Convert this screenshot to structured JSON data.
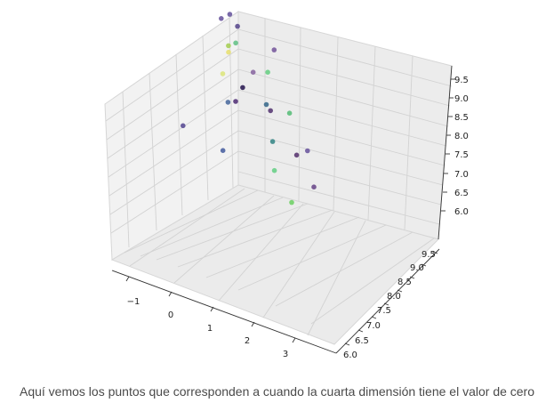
{
  "caption": "Aquí vemos los puntos que corresponden a cuando la cuarta dimensión tiene el valor de cero",
  "chart_data": {
    "type": "scatter",
    "projection": "3d",
    "title": "",
    "xlabel": "",
    "ylabel": "",
    "zlabel": "",
    "xlim": [
      -1.6,
      3.6
    ],
    "ylim": [
      5.9,
      9.6
    ],
    "zlim": [
      5.8,
      9.7
    ],
    "x_ticks": [
      "−1",
      "0",
      "1",
      "2",
      "3"
    ],
    "y_ticks": [
      "6.0",
      "6.5",
      "7.0",
      "7.5",
      "8.0",
      "8.5",
      "9.0",
      "9.5"
    ],
    "z_ticks": [
      "6.0",
      "6.5",
      "7.0",
      "7.5",
      "8.0",
      "8.5",
      "9.0",
      "9.5"
    ],
    "grid": true,
    "colormap": "viridis",
    "points": [
      {
        "x": -0.8,
        "y": 8.8,
        "z": 8.6,
        "color": "#6a5aa0"
      },
      {
        "x": -0.2,
        "y": 8.0,
        "z": 9.4,
        "color": "#6e5aa0"
      },
      {
        "x": 0.0,
        "y": 8.2,
        "z": 9.1,
        "color": "#5c4d8f"
      },
      {
        "x": 0.8,
        "y": 8.3,
        "z": 8.7,
        "color": "#7a5c9e"
      },
      {
        "x": -0.6,
        "y": 8.7,
        "z": 8.0,
        "color": "#67c28a"
      },
      {
        "x": 0.9,
        "y": 8.0,
        "z": 8.4,
        "color": "#6ccf86"
      },
      {
        "x": 1.8,
        "y": 7.6,
        "z": 8.0,
        "color": "#5cbf7c"
      },
      {
        "x": -0.7,
        "y": 8.6,
        "z": 7.8,
        "color": "#e8e073"
      },
      {
        "x": -1.0,
        "y": 8.9,
        "z": 7.6,
        "color": "#a7cf58"
      },
      {
        "x": -0.1,
        "y": 8.6,
        "z": 7.5,
        "color": "#8c6aa3"
      },
      {
        "x": 0.8,
        "y": 8.0,
        "z": 7.5,
        "color": "#3e6e8e"
      },
      {
        "x": 1.0,
        "y": 7.9,
        "z": 7.5,
        "color": "#5a3c76"
      },
      {
        "x": 2.4,
        "y": 7.4,
        "z": 7.4,
        "color": "#6e5aa0"
      },
      {
        "x": -1.1,
        "y": 8.8,
        "z": 6.9,
        "color": "#dde680"
      },
      {
        "x": -0.3,
        "y": 8.5,
        "z": 7.1,
        "color": "#2f1f55"
      },
      {
        "x": -0.3,
        "y": 8.3,
        "z": 6.9,
        "color": "#56367a"
      },
      {
        "x": -0.5,
        "y": 8.3,
        "z": 6.8,
        "color": "#4f6ea0"
      },
      {
        "x": 1.1,
        "y": 7.8,
        "z": 6.8,
        "color": "#3c8a8a"
      },
      {
        "x": 1.8,
        "y": 7.7,
        "z": 6.8,
        "color": "#5c3a73"
      },
      {
        "x": 2.6,
        "y": 7.3,
        "z": 6.6,
        "color": "#6d4b8c"
      },
      {
        "x": 1.4,
        "y": 7.5,
        "z": 6.4,
        "color": "#6bd08a"
      },
      {
        "x": 2.2,
        "y": 7.1,
        "z": 6.2,
        "color": "#72d269"
      },
      {
        "x": 0.0,
        "y": 7.6,
        "z": 6.3,
        "color": "#4d63a2"
      },
      {
        "x": -1.3,
        "y": 7.9,
        "z": 6.2,
        "color": "#5b4e95"
      }
    ]
  }
}
